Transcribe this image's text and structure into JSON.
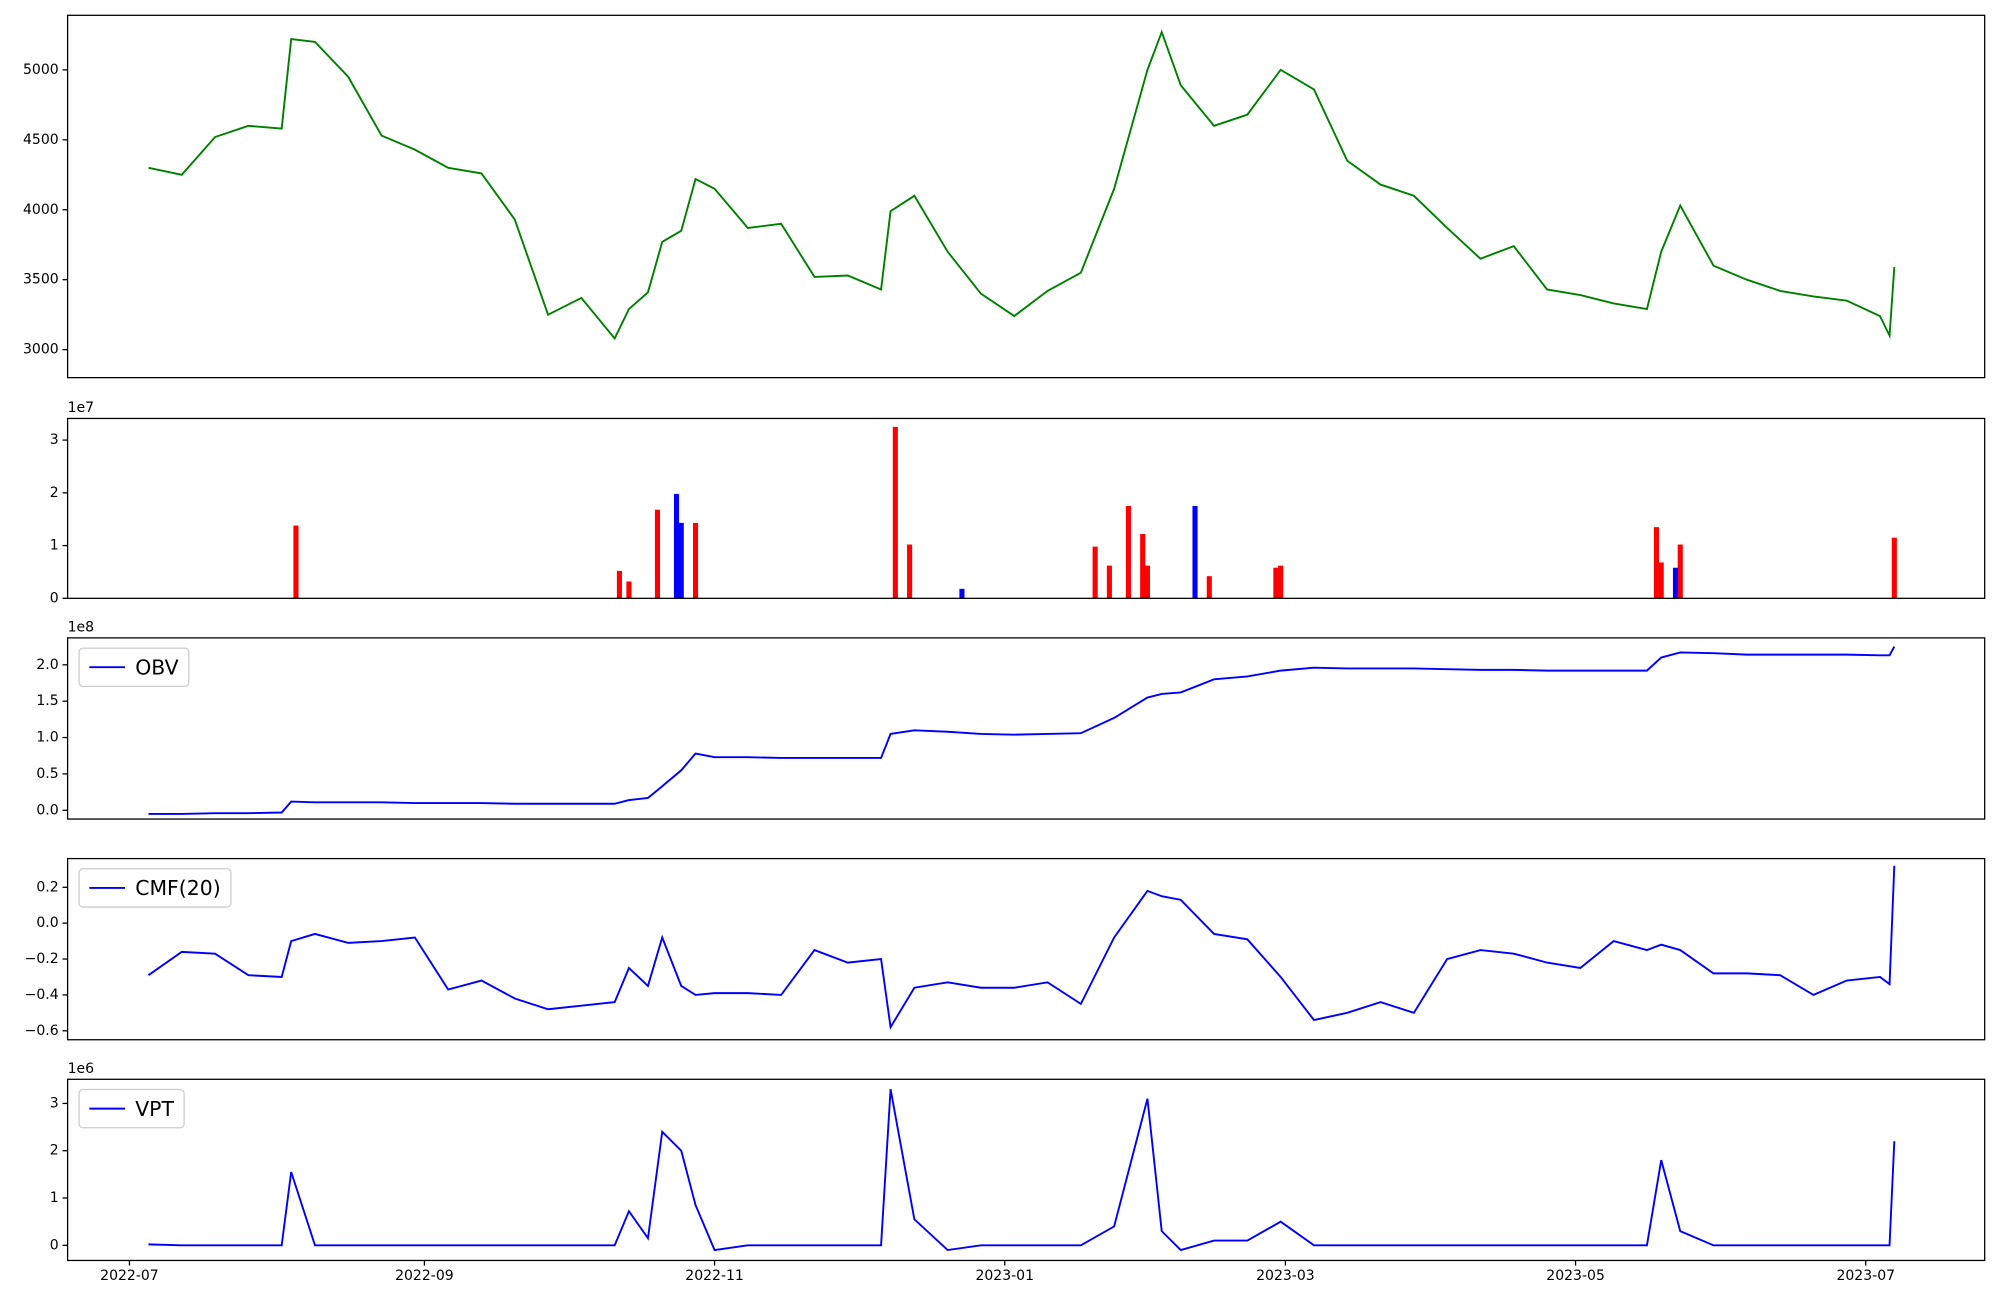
{
  "chart_data": [
    {
      "type": "line",
      "x": [
        "2022-07-05",
        "2022-07-12",
        "2022-07-19",
        "2022-07-26",
        "2022-08-02",
        "2022-08-04",
        "2022-08-09",
        "2022-08-16",
        "2022-08-23",
        "2022-08-30",
        "2022-09-06",
        "2022-09-13",
        "2022-09-20",
        "2022-09-27",
        "2022-10-04",
        "2022-10-11",
        "2022-10-14",
        "2022-10-18",
        "2022-10-21",
        "2022-10-25",
        "2022-10-28",
        "2022-11-01",
        "2022-11-08",
        "2022-11-15",
        "2022-11-22",
        "2022-11-29",
        "2022-12-06",
        "2022-12-08",
        "2022-12-13",
        "2022-12-20",
        "2022-12-27",
        "2023-01-03",
        "2023-01-10",
        "2023-01-17",
        "2023-01-24",
        "2023-01-31",
        "2023-02-03",
        "2023-02-07",
        "2023-02-14",
        "2023-02-21",
        "2023-02-28",
        "2023-03-07",
        "2023-03-14",
        "2023-03-21",
        "2023-03-28",
        "2023-04-04",
        "2023-04-11",
        "2023-04-18",
        "2023-04-25",
        "2023-05-02",
        "2023-05-09",
        "2023-05-16",
        "2023-05-19",
        "2023-05-23",
        "2023-05-30",
        "2023-06-06",
        "2023-06-13",
        "2023-06-20",
        "2023-06-27",
        "2023-07-04",
        "2023-07-06",
        "2023-07-07"
      ],
      "series": [
        {
          "color": "#008000",
          "values": [
            4300,
            4250,
            4520,
            4600,
            4580,
            5220,
            5200,
            4950,
            4530,
            4430,
            4300,
            4260,
            3930,
            3250,
            3370,
            3080,
            3290,
            3410,
            3770,
            3850,
            4220,
            4150,
            3870,
            3900,
            3520,
            3530,
            3430,
            3990,
            4100,
            3700,
            3400,
            3240,
            3420,
            3550,
            4150,
            5000,
            5270,
            4890,
            4600,
            4680,
            5000,
            4860,
            4350,
            4180,
            4100,
            3870,
            3650,
            3740,
            3430,
            3390,
            3330,
            3290,
            3700,
            4030,
            3600,
            3500,
            3420,
            3380,
            3350,
            3240,
            3100,
            3590
          ]
        }
      ],
      "xlim": [
        "2022-06-18",
        "2023-07-26"
      ],
      "ylim": [
        2800,
        5390
      ],
      "yticks": [
        3000,
        3500,
        4000,
        4500,
        5000
      ]
    },
    {
      "type": "bar",
      "offset_label": "1e7",
      "x": [
        "2022-08-05",
        "2022-10-12",
        "2022-10-14",
        "2022-10-20",
        "2022-10-24",
        "2022-10-25",
        "2022-10-28",
        "2022-12-09",
        "2022-12-12",
        "2022-12-23",
        "2023-01-20",
        "2023-01-23",
        "2023-01-27",
        "2023-01-30",
        "2023-01-31",
        "2023-02-10",
        "2023-02-13",
        "2023-02-27",
        "2023-02-28",
        "2023-05-18",
        "2023-05-19",
        "2023-05-22",
        "2023-05-23",
        "2023-07-07"
      ],
      "series": [
        {
          "color": "#ff0000",
          "values": [
            1.38,
            0.52,
            0.32,
            1.68,
            null,
            null,
            1.43,
            3.25,
            1.02,
            null,
            0.98,
            0.62,
            1.75,
            1.22,
            0.62,
            null,
            0.42,
            0.58,
            0.62,
            1.35,
            0.68,
            null,
            1.02,
            1.15
          ]
        },
        {
          "color": "#0000ff",
          "values": [
            null,
            null,
            null,
            null,
            1.98,
            1.43,
            null,
            null,
            null,
            0.18,
            null,
            null,
            null,
            null,
            null,
            1.75,
            null,
            null,
            null,
            null,
            null,
            0.58,
            null,
            null
          ]
        }
      ],
      "xlim": [
        "2022-06-18",
        "2023-07-26"
      ],
      "ylim": [
        0,
        3.41
      ],
      "yticks": [
        0,
        1,
        2,
        3
      ]
    },
    {
      "type": "line",
      "offset_label": "1e8",
      "legend": "upper left",
      "x": [
        "2022-07-05",
        "2022-07-12",
        "2022-07-19",
        "2022-07-26",
        "2022-08-02",
        "2022-08-04",
        "2022-08-09",
        "2022-08-16",
        "2022-08-23",
        "2022-08-30",
        "2022-09-06",
        "2022-09-13",
        "2022-09-20",
        "2022-09-27",
        "2022-10-04",
        "2022-10-11",
        "2022-10-14",
        "2022-10-18",
        "2022-10-21",
        "2022-10-25",
        "2022-10-28",
        "2022-11-01",
        "2022-11-08",
        "2022-11-15",
        "2022-11-22",
        "2022-11-29",
        "2022-12-06",
        "2022-12-08",
        "2022-12-13",
        "2022-12-20",
        "2022-12-27",
        "2023-01-03",
        "2023-01-10",
        "2023-01-17",
        "2023-01-24",
        "2023-01-31",
        "2023-02-03",
        "2023-02-07",
        "2023-02-14",
        "2023-02-21",
        "2023-02-28",
        "2023-03-07",
        "2023-03-14",
        "2023-03-21",
        "2023-03-28",
        "2023-04-04",
        "2023-04-11",
        "2023-04-18",
        "2023-04-25",
        "2023-05-02",
        "2023-05-09",
        "2023-05-16",
        "2023-05-19",
        "2023-05-23",
        "2023-05-30",
        "2023-06-06",
        "2023-06-13",
        "2023-06-20",
        "2023-06-27",
        "2023-07-04",
        "2023-07-06",
        "2023-07-07"
      ],
      "series": [
        {
          "name": "OBV",
          "color": "#0000ff",
          "values": [
            -0.05,
            -0.05,
            -0.04,
            -0.04,
            -0.03,
            0.12,
            0.11,
            0.11,
            0.11,
            0.1,
            0.1,
            0.1,
            0.09,
            0.09,
            0.09,
            0.09,
            0.14,
            0.17,
            0.33,
            0.55,
            0.78,
            0.73,
            0.73,
            0.72,
            0.72,
            0.72,
            0.72,
            1.05,
            1.1,
            1.08,
            1.05,
            1.04,
            1.05,
            1.06,
            1.27,
            1.55,
            1.6,
            1.62,
            1.8,
            1.84,
            1.92,
            1.96,
            1.95,
            1.95,
            1.95,
            1.94,
            1.93,
            1.93,
            1.92,
            1.92,
            1.92,
            1.92,
            2.1,
            2.17,
            2.16,
            2.14,
            2.14,
            2.14,
            2.14,
            2.13,
            2.13,
            2.25
          ]
        }
      ],
      "xlim": [
        "2022-06-18",
        "2023-07-26"
      ],
      "ylim": [
        -0.12,
        2.37
      ],
      "yticks": [
        {
          "value": 0,
          "label": "0.0"
        },
        0.5,
        {
          "value": 1,
          "label": "1.0"
        },
        1.5,
        {
          "value": 2,
          "label": "2.0"
        }
      ]
    },
    {
      "type": "line",
      "legend": "upper left",
      "x": [
        "2022-07-05",
        "2022-07-12",
        "2022-07-19",
        "2022-07-26",
        "2022-08-02",
        "2022-08-04",
        "2022-08-09",
        "2022-08-16",
        "2022-08-23",
        "2022-08-30",
        "2022-09-06",
        "2022-09-13",
        "2022-09-20",
        "2022-09-27",
        "2022-10-04",
        "2022-10-11",
        "2022-10-14",
        "2022-10-18",
        "2022-10-21",
        "2022-10-25",
        "2022-10-28",
        "2022-11-01",
        "2022-11-08",
        "2022-11-15",
        "2022-11-22",
        "2022-11-29",
        "2022-12-06",
        "2022-12-08",
        "2022-12-13",
        "2022-12-20",
        "2022-12-27",
        "2023-01-03",
        "2023-01-10",
        "2023-01-17",
        "2023-01-24",
        "2023-01-31",
        "2023-02-03",
        "2023-02-07",
        "2023-02-14",
        "2023-02-21",
        "2023-02-28",
        "2023-03-07",
        "2023-03-14",
        "2023-03-21",
        "2023-03-28",
        "2023-04-04",
        "2023-04-11",
        "2023-04-18",
        "2023-04-25",
        "2023-05-02",
        "2023-05-09",
        "2023-05-16",
        "2023-05-19",
        "2023-05-23",
        "2023-05-30",
        "2023-06-06",
        "2023-06-13",
        "2023-06-20",
        "2023-06-27",
        "2023-07-04",
        "2023-07-06",
        "2023-07-07"
      ],
      "series": [
        {
          "name": "CMF(20)",
          "color": "#0000ff",
          "values": [
            -0.29,
            -0.16,
            -0.17,
            -0.29,
            -0.3,
            -0.1,
            -0.06,
            -0.11,
            -0.1,
            -0.08,
            -0.37,
            -0.32,
            -0.42,
            -0.48,
            -0.46,
            -0.44,
            -0.25,
            -0.35,
            -0.08,
            -0.35,
            -0.4,
            -0.39,
            -0.39,
            -0.4,
            -0.15,
            -0.22,
            -0.2,
            -0.58,
            -0.36,
            -0.33,
            -0.36,
            -0.36,
            -0.33,
            -0.45,
            -0.08,
            0.18,
            0.15,
            0.13,
            -0.06,
            -0.09,
            -0.3,
            -0.54,
            -0.5,
            -0.44,
            -0.5,
            -0.2,
            -0.15,
            -0.17,
            -0.22,
            -0.25,
            -0.1,
            -0.15,
            -0.12,
            -0.15,
            -0.28,
            -0.28,
            -0.29,
            -0.4,
            -0.32,
            -0.3,
            -0.34,
            0.32
          ]
        }
      ],
      "xlim": [
        "2022-06-18",
        "2023-07-26"
      ],
      "ylim": [
        -0.65,
        0.36
      ],
      "yticks": [
        {
          "value": -0.6,
          "label": "−0.6"
        },
        {
          "value": -0.4,
          "label": "−0.4"
        },
        {
          "value": -0.2,
          "label": "−0.2"
        },
        {
          "value": 0,
          "label": "0.0"
        },
        0.2
      ]
    },
    {
      "type": "line",
      "offset_label": "1e6",
      "legend": "upper left",
      "x": [
        "2022-07-05",
        "2022-07-12",
        "2022-07-19",
        "2022-07-26",
        "2022-08-02",
        "2022-08-04",
        "2022-08-09",
        "2022-08-16",
        "2022-08-23",
        "2022-08-30",
        "2022-09-06",
        "2022-09-13",
        "2022-09-20",
        "2022-09-27",
        "2022-10-04",
        "2022-10-11",
        "2022-10-14",
        "2022-10-18",
        "2022-10-21",
        "2022-10-25",
        "2022-10-28",
        "2022-11-01",
        "2022-11-08",
        "2022-11-15",
        "2022-11-22",
        "2022-11-29",
        "2022-12-06",
        "2022-12-08",
        "2022-12-13",
        "2022-12-20",
        "2022-12-27",
        "2023-01-03",
        "2023-01-10",
        "2023-01-17",
        "2023-01-24",
        "2023-01-31",
        "2023-02-03",
        "2023-02-07",
        "2023-02-14",
        "2023-02-21",
        "2023-02-28",
        "2023-03-07",
        "2023-03-14",
        "2023-03-21",
        "2023-03-28",
        "2023-04-04",
        "2023-04-11",
        "2023-04-18",
        "2023-04-25",
        "2023-05-02",
        "2023-05-09",
        "2023-05-16",
        "2023-05-19",
        "2023-05-23",
        "2023-05-30",
        "2023-06-06",
        "2023-06-13",
        "2023-06-20",
        "2023-06-27",
        "2023-07-04",
        "2023-07-06",
        "2023-07-07"
      ],
      "series": [
        {
          "name": "VPT",
          "color": "#0000ff",
          "values": [
            0.02,
            0,
            0,
            0,
            0,
            1.55,
            0,
            0,
            0,
            0,
            0,
            0,
            0,
            0,
            0,
            0,
            0.72,
            0.15,
            2.4,
            2,
            0.85,
            -0.1,
            0,
            0,
            0,
            0,
            0,
            3.3,
            0.55,
            -0.1,
            0,
            0,
            0,
            0,
            0.4,
            3.1,
            0.3,
            -0.1,
            0.1,
            0.1,
            0.5,
            0,
            0,
            0,
            0,
            0,
            0,
            0,
            0,
            0,
            0,
            0,
            1.8,
            0.3,
            0,
            0,
            0,
            0,
            0,
            0,
            0,
            2.2
          ]
        }
      ],
      "xlim": [
        "2022-06-18",
        "2023-07-26"
      ],
      "ylim": [
        -0.32,
        3.51
      ],
      "yticks": [
        0,
        1,
        2,
        3
      ],
      "xticks": [
        "2022-07",
        "2022-09",
        "2022-11",
        "2023-01",
        "2023-03",
        "2023-05",
        "2023-07"
      ]
    }
  ]
}
